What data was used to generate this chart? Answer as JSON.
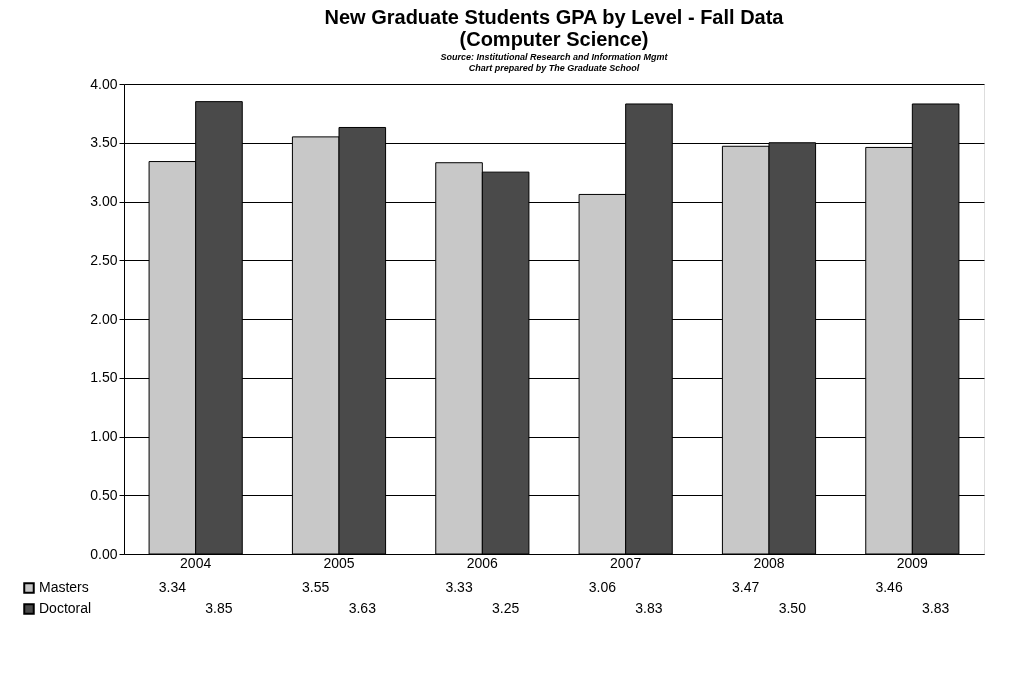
{
  "chart_data": {
    "type": "bar",
    "title": "New Graduate Students GPA by Level - Fall Data",
    "subtitle": "(Computer Science)",
    "annotations": [
      "Source: Institutional Research and Information Mgmt",
      "Chart prepared by The Graduate School"
    ],
    "categories": [
      "2004",
      "2005",
      "2006",
      "2007",
      "2008",
      "2009"
    ],
    "series": [
      {
        "name": "Masters",
        "color": "#c8c8c8",
        "values": [
          3.34,
          3.55,
          3.33,
          3.06,
          3.47,
          3.46
        ],
        "value_labels": [
          "3.34",
          "3.55",
          "3.33",
          "3.06",
          "3.47",
          "3.46"
        ]
      },
      {
        "name": "Doctoral",
        "color": "#4a4a4a",
        "values": [
          3.85,
          3.63,
          3.25,
          3.83,
          3.5,
          3.83
        ],
        "value_labels": [
          "3.85",
          "3.63",
          "3.25",
          "3.83",
          "3.50",
          "3.83"
        ]
      }
    ],
    "ylim": [
      0,
      4
    ],
    "yticks": [
      {
        "value": 0,
        "label": "0.00"
      },
      {
        "value": 0.5,
        "label": "0.50"
      },
      {
        "value": 1,
        "label": "1.00"
      },
      {
        "value": 1.5,
        "label": "1.50"
      },
      {
        "value": 2,
        "label": "2.00"
      },
      {
        "value": 2.5,
        "label": "2.50"
      },
      {
        "value": 3,
        "label": "3.00"
      },
      {
        "value": 3.5,
        "label": "3.50"
      },
      {
        "value": 4,
        "label": "4.00"
      }
    ],
    "grid": "y",
    "legend": "bottom"
  }
}
